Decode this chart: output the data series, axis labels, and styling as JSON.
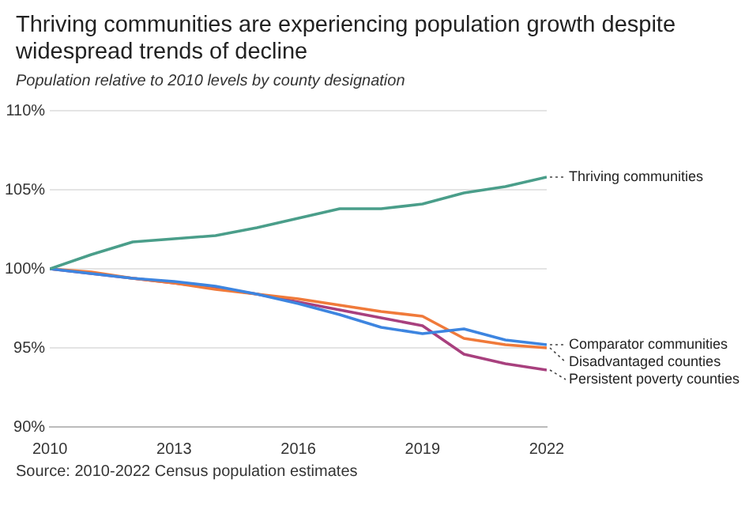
{
  "chart_data": {
    "type": "line",
    "title": "Thriving communities are experiencing population growth despite widespread trends of decline",
    "subtitle": "Population relative to 2010 levels by county designation",
    "annotations": [
      "Source: 2010-2022 Census population estimates"
    ],
    "x": [
      2010,
      2011,
      2012,
      2013,
      2014,
      2015,
      2016,
      2017,
      2018,
      2019,
      2020,
      2021,
      2022
    ],
    "series": [
      {
        "name": "Thriving communities",
        "color": "#4a9e8a",
        "values": [
          100,
          100.9,
          101.7,
          101.9,
          102.1,
          102.6,
          103.2,
          103.8,
          103.8,
          104.1,
          104.8,
          105.2,
          105.8
        ]
      },
      {
        "name": "Comparator communities",
        "color": "#3d85e0",
        "values": [
          100,
          99.7,
          99.4,
          99.2,
          98.9,
          98.4,
          97.8,
          97.1,
          96.3,
          95.9,
          96.2,
          95.5,
          95.2
        ]
      },
      {
        "name": "Disadvantaged counties",
        "color": "#f07a3a",
        "values": [
          100,
          99.8,
          99.4,
          99.1,
          98.7,
          98.4,
          98.1,
          97.7,
          97.3,
          97.0,
          95.6,
          95.2,
          95.0
        ]
      },
      {
        "name": "Persistent poverty counties",
        "color": "#a8407e",
        "values": [
          100,
          99.7,
          99.4,
          99.1,
          98.8,
          98.4,
          97.9,
          97.4,
          96.9,
          96.4,
          94.6,
          94.0,
          93.6
        ]
      }
    ],
    "xlim": [
      2010,
      2022
    ],
    "xticks": [
      2010,
      2013,
      2016,
      2019,
      2022
    ],
    "ylim": [
      90,
      110
    ],
    "yticks": [
      {
        "value": 90,
        "label": "90%"
      },
      {
        "value": 95,
        "label": "95%"
      },
      {
        "value": 100,
        "label": "100%"
      },
      {
        "value": 105,
        "label": "105%"
      },
      {
        "value": 110,
        "label": "110%"
      }
    ],
    "grid": "y",
    "legend": false,
    "marker": "none",
    "line_style": "solid"
  }
}
